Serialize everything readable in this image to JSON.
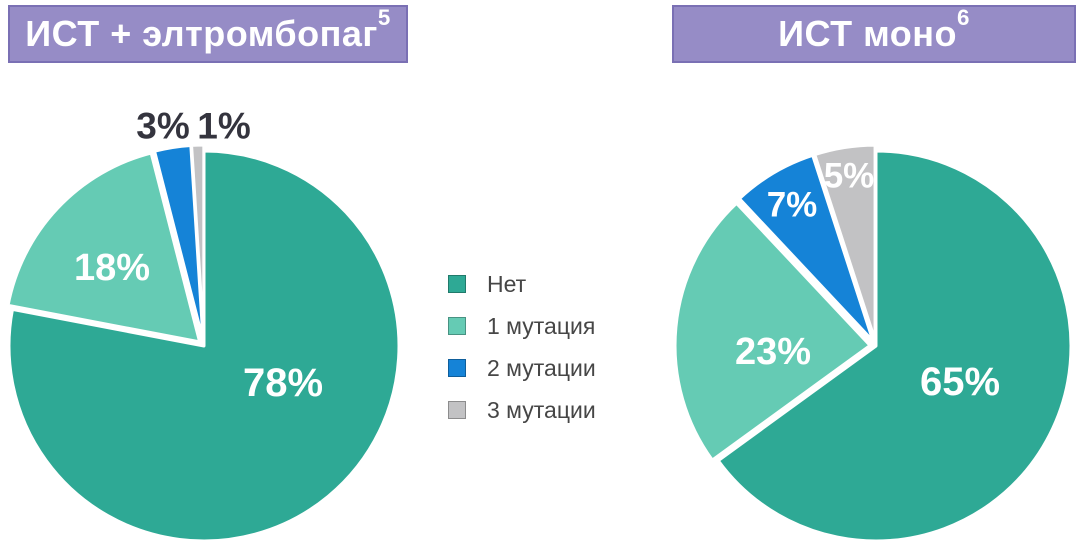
{
  "headers": [
    {
      "title": "ИСТ + элтромбопаг",
      "sup": "5"
    },
    {
      "title": "ИСТ моно",
      "sup": "6"
    }
  ],
  "colors": {
    "header_bg": "#968CC6",
    "header_border": "#7A70B4",
    "header_text": "#FFFFFF",
    "slice_none": "#2EA995",
    "slice_1mut": "#65CBB4",
    "slice_2mut": "#1583D7",
    "slice_3mut": "#C2C2C4",
    "outside_label_text": "#34343E",
    "inside_label_text": "#FFFFFF"
  },
  "legend": {
    "items": [
      {
        "label": "Нет",
        "color": "#2EA995"
      },
      {
        "label": "1 мутация",
        "color": "#65CBB4"
      },
      {
        "label": "2 мутации",
        "color": "#1583D7"
      },
      {
        "label": "3 мутации",
        "color": "#C2C2C4"
      }
    ]
  },
  "chart_data": [
    {
      "type": "pie",
      "title": "ИСТ + элтромбопаг⁵",
      "categories": [
        "Нет",
        "1 мутация",
        "2 мутации",
        "3 мутации"
      ],
      "values": [
        78,
        18,
        3,
        1
      ],
      "labels": [
        "78%",
        "18%",
        "3%",
        "1%"
      ],
      "colors": [
        "#2EA995",
        "#65CBB4",
        "#1583D7",
        "#C2C2C4"
      ],
      "label_text_colors": [
        "#FFFFFF",
        "#FFFFFF",
        "#34343E",
        "#34343E"
      ],
      "label_placement": [
        "inside",
        "inside",
        "outside",
        "outside"
      ],
      "start_angle": "12-oclock",
      "direction": "clockwise",
      "legend_position": "center-between-charts"
    },
    {
      "type": "pie",
      "title": "ИСТ моно⁶",
      "categories": [
        "Нет",
        "1 мутация",
        "2 мутации",
        "3 мутации"
      ],
      "values": [
        65,
        23,
        7,
        5
      ],
      "labels": [
        "65%",
        "23%",
        "7%",
        "5%"
      ],
      "colors": [
        "#2EA995",
        "#65CBB4",
        "#1583D7",
        "#C2C2C4"
      ],
      "label_text_colors": [
        "#FFFFFF",
        "#FFFFFF",
        "#FFFFFF",
        "#FFFFFF"
      ],
      "label_placement": [
        "inside",
        "inside",
        "inside",
        "inside"
      ],
      "start_angle": "12-oclock",
      "direction": "clockwise",
      "legend_position": "center-between-charts"
    }
  ]
}
